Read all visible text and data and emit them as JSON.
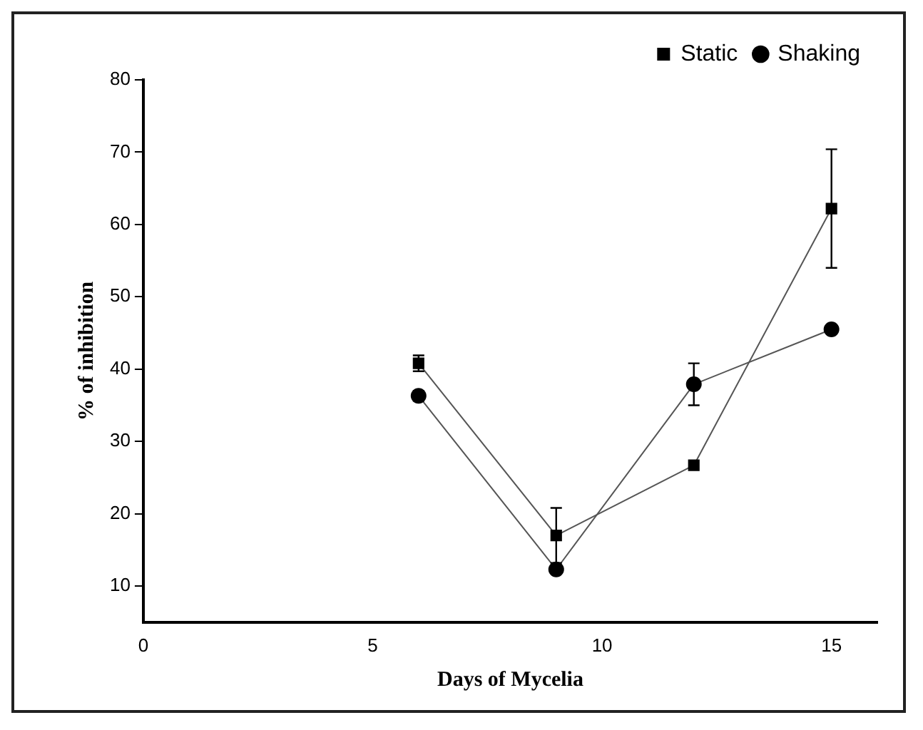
{
  "chart_data": {
    "type": "line",
    "xlabel": "Days of Mycelia",
    "ylabel": "% of inhibition",
    "x": [
      6,
      9,
      12,
      15
    ],
    "series": [
      {
        "name": "Static",
        "color": "#000000",
        "marker": "square",
        "values": [
          40.8,
          17.0,
          26.7,
          62.2
        ],
        "errors": [
          1.1,
          3.8,
          null,
          8.2
        ]
      },
      {
        "name": "Shaking",
        "color": "#000000",
        "marker": "circle",
        "values": [
          36.3,
          12.3,
          37.9,
          45.5
        ],
        "errors": [
          0.7,
          null,
          2.9,
          null
        ]
      }
    ],
    "xlim": [
      0,
      16
    ],
    "xticks": [
      0,
      5,
      10,
      15
    ],
    "ylim": [
      5,
      80
    ],
    "yticks": [
      10,
      20,
      30,
      40,
      50,
      60,
      70,
      80
    ],
    "grid": false,
    "legend": "top right",
    "line_style": "solid"
  }
}
